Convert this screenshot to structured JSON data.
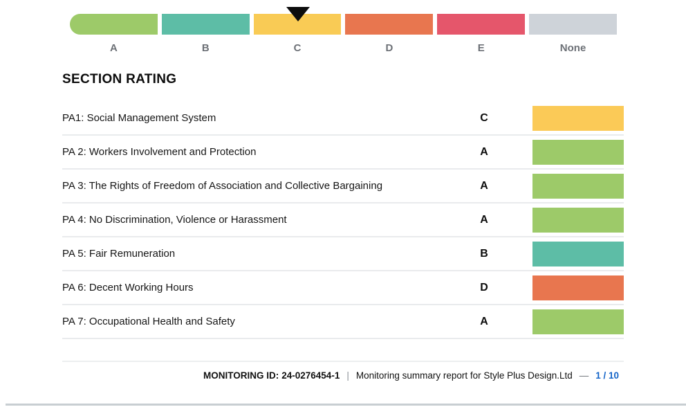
{
  "scale": {
    "marker_segment": "C",
    "segments": [
      {
        "label": "A",
        "color": "#9DCA69"
      },
      {
        "label": "B",
        "color": "#5DBDA6"
      },
      {
        "label": "C",
        "color": "#F9CB55"
      },
      {
        "label": "D",
        "color": "#E8764F"
      },
      {
        "label": "E",
        "color": "#E5566B"
      },
      {
        "label": "None",
        "color": "#CED3D9"
      }
    ]
  },
  "section": {
    "title": "SECTION RATING",
    "rows": [
      {
        "label": "PA1: Social Management System",
        "rating": "C",
        "color": "#FBCA57"
      },
      {
        "label": "PA 2: Workers Involvement and Protection",
        "rating": "A",
        "color": "#9DCA69"
      },
      {
        "label": "PA 3: The Rights of Freedom of Association and Collective Bargaining",
        "rating": "A",
        "color": "#9DCA69"
      },
      {
        "label": "PA 4: No Discrimination, Violence or Harassment",
        "rating": "A",
        "color": "#9DCA69"
      },
      {
        "label": "PA 5: Fair Remuneration",
        "rating": "B",
        "color": "#5DBDA6"
      },
      {
        "label": "PA 6: Decent Working Hours",
        "rating": "D",
        "color": "#E8764F"
      },
      {
        "label": "PA 7: Occupational Health and Safety",
        "rating": "A",
        "color": "#9DCA69"
      }
    ]
  },
  "footer": {
    "monitoring_id_label": "MONITORING ID:",
    "monitoring_id": "24-0276454-1",
    "separator": "|",
    "report_title": "Monitoring summary report for Style Plus Design.Ltd",
    "dash": "—",
    "page_indicator": "1 / 10",
    "page_color": "#1464C8"
  }
}
